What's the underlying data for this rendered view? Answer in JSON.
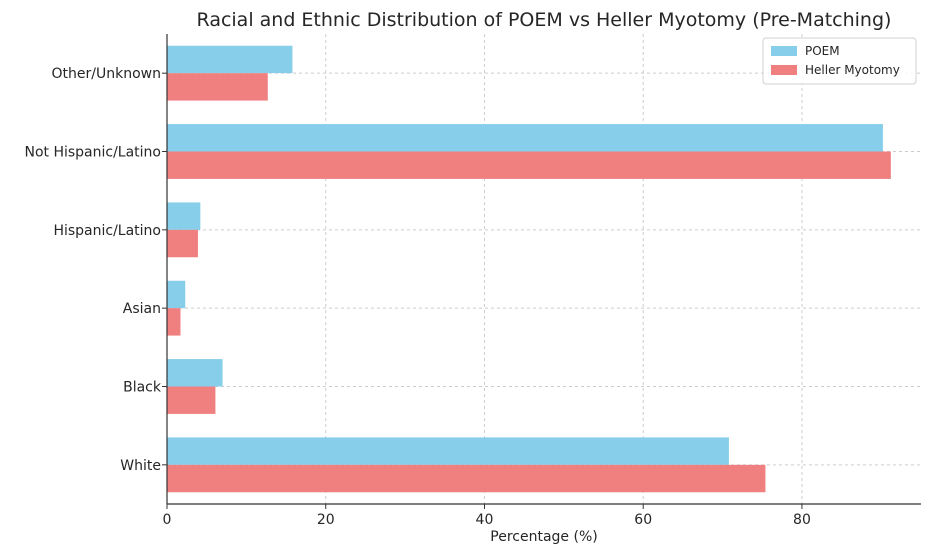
{
  "chart_data": {
    "type": "bar",
    "orientation": "horizontal",
    "title": "Racial and Ethnic Distribution of POEM vs Heller Myotomy (Pre-Matching)",
    "xlabel": "Percentage (%)",
    "ylabel": "",
    "xlim": [
      0,
      95
    ],
    "xticks": [
      0,
      20,
      40,
      60,
      80
    ],
    "categories": [
      "White",
      "Black",
      "Asian",
      "Hispanic/Latino",
      "Not Hispanic/Latino",
      "Other/Unknown"
    ],
    "series": [
      {
        "name": "POEM",
        "color": "#87ceeb",
        "values": [
          70.8,
          7.0,
          2.3,
          4.2,
          90.2,
          15.8
        ]
      },
      {
        "name": "Heller Myotomy",
        "color": "#f08080",
        "values": [
          75.4,
          6.1,
          1.7,
          3.9,
          91.2,
          12.7
        ]
      }
    ],
    "grid": true,
    "legend": "top-right"
  }
}
